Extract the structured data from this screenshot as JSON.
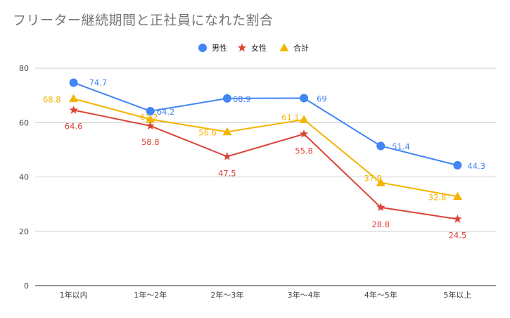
{
  "chart_data": {
    "type": "line",
    "title": "フリーター継続期間と正社員になれた割合",
    "categories": [
      "1年以内",
      "1年～2年",
      "2年～3年",
      "3年～4年",
      "4年～5年",
      "5年以上"
    ],
    "series": [
      {
        "name": "男性",
        "color": "#4285f4",
        "marker": "circle",
        "values": [
          74.7,
          64.2,
          68.9,
          69,
          51.4,
          44.3
        ]
      },
      {
        "name": "女性",
        "color": "#db4437",
        "marker": "star",
        "values": [
          64.6,
          58.8,
          47.5,
          55.8,
          28.8,
          24.5
        ]
      },
      {
        "name": "合計",
        "color": "#f4b400",
        "marker": "triangle",
        "values": [
          68.8,
          61.2,
          56.6,
          61.1,
          37.9,
          32.8
        ]
      }
    ],
    "ylim": [
      0,
      80
    ],
    "yticks": [
      0,
      20,
      40,
      60,
      80
    ],
    "grid": true,
    "legend": "top-center",
    "xlabel": "",
    "ylabel": ""
  }
}
